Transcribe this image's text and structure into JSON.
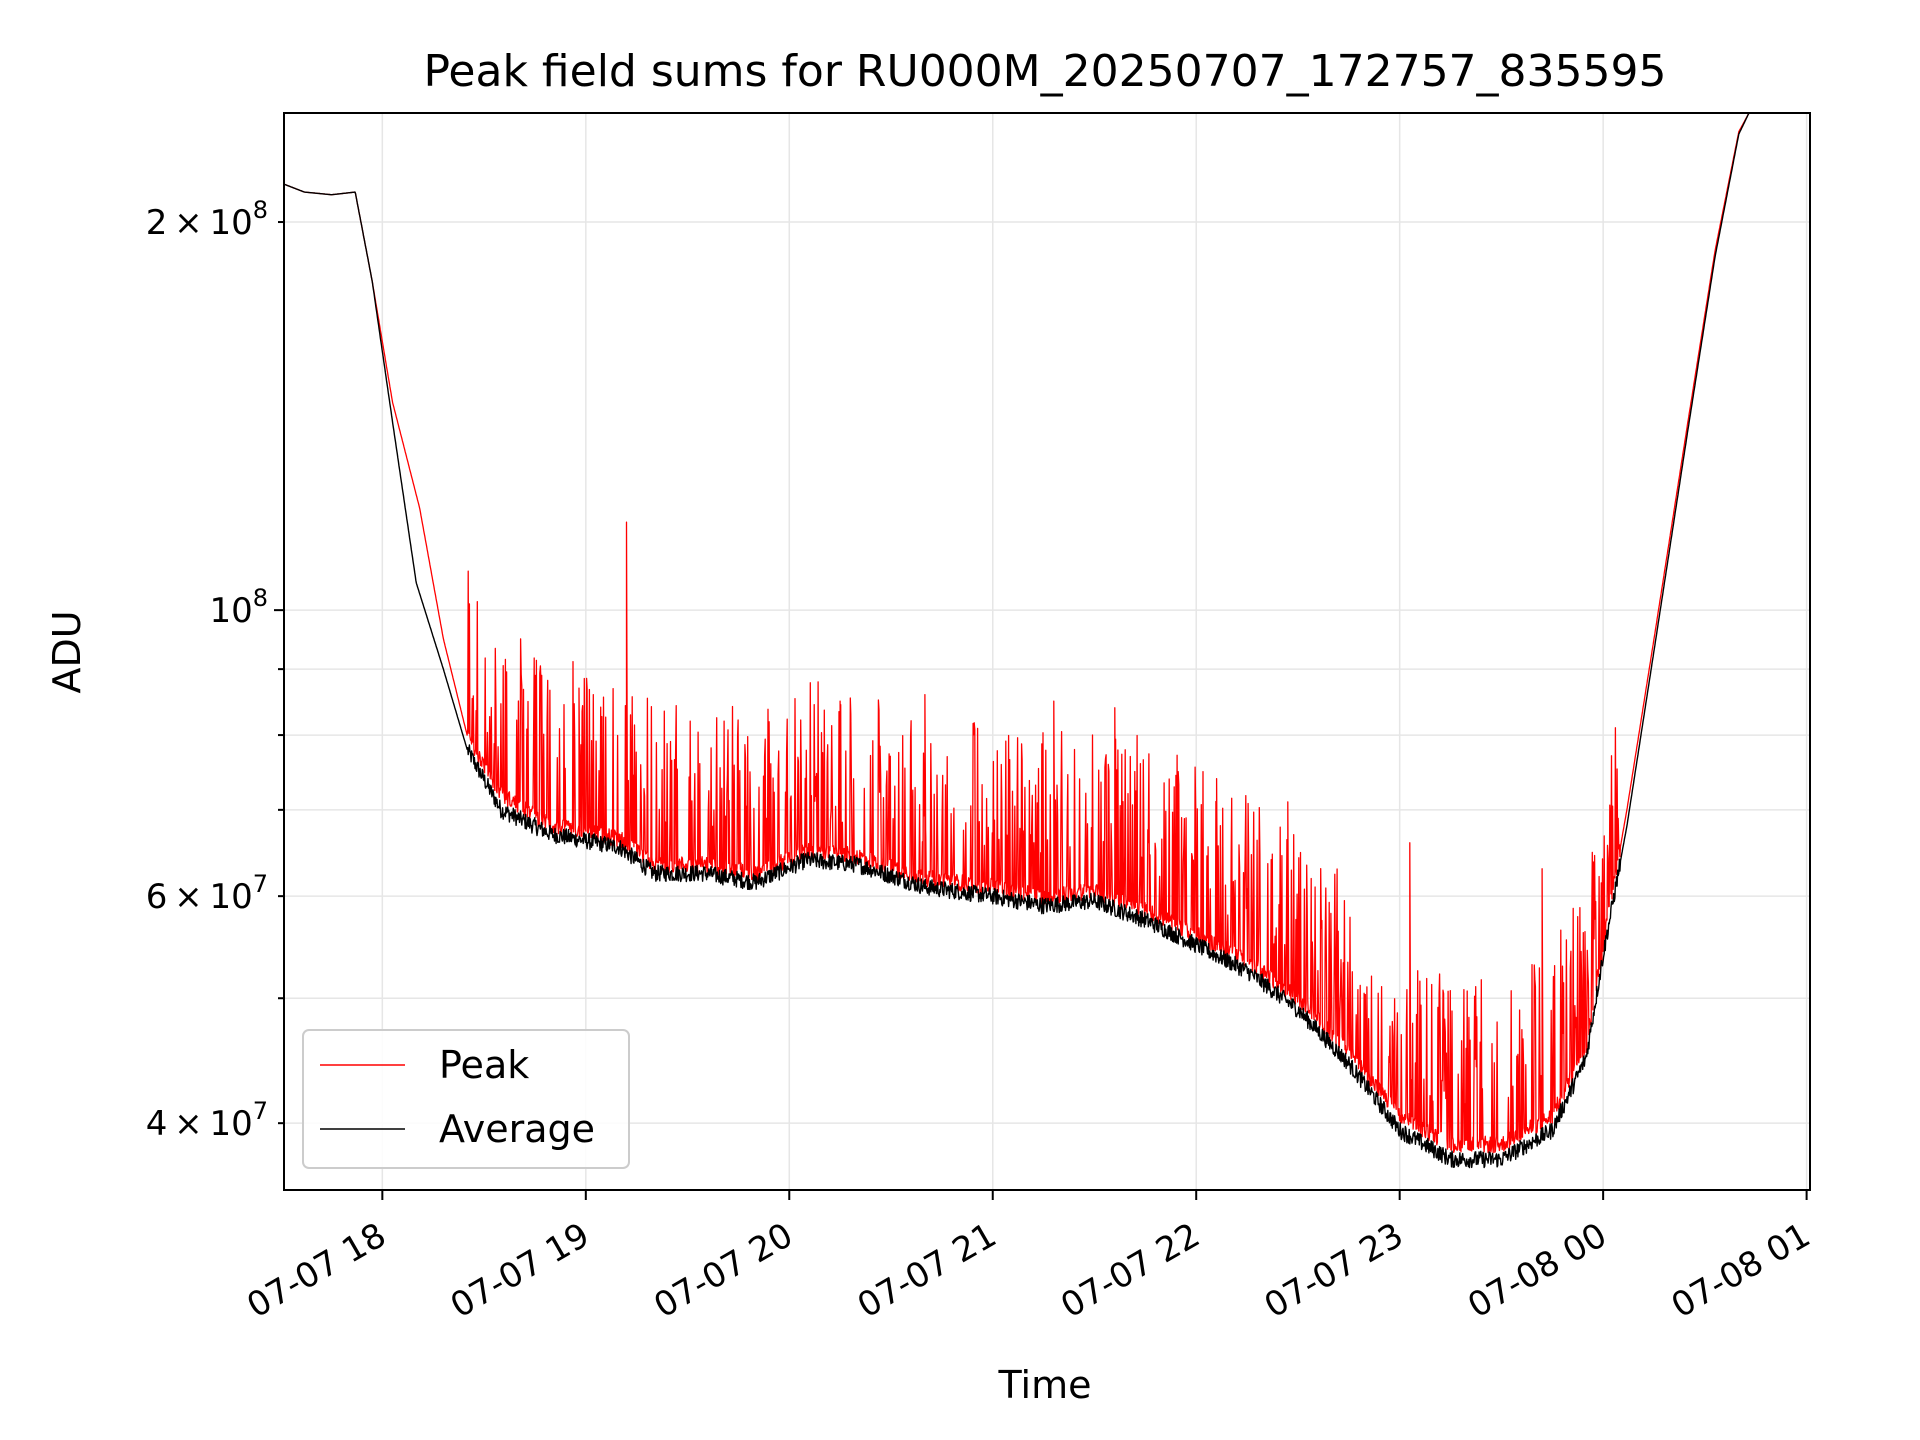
{
  "chart_data": {
    "type": "line",
    "title": "Peak field sums for RU000M_20250707_172757_835595",
    "xlabel": "Time",
    "ylabel": "ADU",
    "x_scale": "time",
    "y_scale": "log",
    "x_range": [
      "2025-07-07 17:31",
      "2025-07-08 01:01"
    ],
    "ylim": [
      35500000,
      243000000
    ],
    "x_ticks": [
      "07-07 18",
      "07-07 19",
      "07-07 20",
      "07-07 21",
      "07-07 22",
      "07-07 23",
      "07-08 00",
      "07-08 01"
    ],
    "x_tick_times": [
      "2025-07-07 18:00",
      "2025-07-07 19:00",
      "2025-07-07 20:00",
      "2025-07-07 21:00",
      "2025-07-07 22:00",
      "2025-07-07 23:00",
      "2025-07-08 00:00",
      "2025-07-08 01:00"
    ],
    "y_ticks_major": [
      {
        "value": 100000000,
        "mantissa": "",
        "exp": "8"
      }
    ],
    "y_ticks_minor": [
      {
        "value": 40000000,
        "mantissa": "4",
        "exp": "7"
      },
      {
        "value": 60000000,
        "mantissa": "6",
        "exp": "7"
      },
      {
        "value": 200000000,
        "mantissa": "2",
        "exp": "8"
      }
    ],
    "grid": true,
    "legend_position": "lower-left",
    "series": [
      {
        "name": "Peak",
        "color": "#ff0000",
        "points": [
          [
            "2025-07-07 17:31",
            214000000
          ],
          [
            "2025-07-07 17:37",
            211000000
          ],
          [
            "2025-07-07 17:45",
            210000000
          ],
          [
            "2025-07-07 17:52",
            211000000
          ],
          [
            "2025-07-07 17:57",
            180000000
          ],
          [
            "2025-07-07 18:03",
            145000000
          ],
          [
            "2025-07-07 18:11",
            120000000
          ],
          [
            "2025-07-07 18:18",
            95000000
          ],
          [
            "2025-07-07 18:25",
            80000000
          ],
          [
            "2025-07-07 18:35",
            72000000
          ],
          [
            "2025-07-07 18:50",
            68000000
          ],
          [
            "2025-07-07 19:10",
            66500000
          ],
          [
            "2025-07-07 19:20",
            63500000
          ],
          [
            "2025-07-07 19:35",
            63500000
          ],
          [
            "2025-07-07 19:50",
            62500000
          ],
          [
            "2025-07-07 20:05",
            65000000
          ],
          [
            "2025-07-07 20:20",
            64500000
          ],
          [
            "2025-07-07 20:40",
            62000000
          ],
          [
            "2025-07-07 21:00",
            61000000
          ],
          [
            "2025-07-07 21:15",
            60000000
          ],
          [
            "2025-07-07 21:30",
            60500000
          ],
          [
            "2025-07-07 21:45",
            58500000
          ],
          [
            "2025-07-07 22:00",
            56000000
          ],
          [
            "2025-07-07 22:15",
            53500000
          ],
          [
            "2025-07-07 22:30",
            50000000
          ],
          [
            "2025-07-07 22:45",
            45500000
          ],
          [
            "2025-07-07 23:00",
            40500000
          ],
          [
            "2025-07-07 23:15",
            38500000
          ],
          [
            "2025-07-07 23:30",
            38500000
          ],
          [
            "2025-07-07 23:45",
            40500000
          ],
          [
            "2025-07-07 23:55",
            46000000
          ],
          [
            "2025-07-08 00:00",
            55000000
          ],
          [
            "2025-07-08 00:07",
            70000000
          ],
          [
            "2025-07-08 00:15",
            95000000
          ],
          [
            "2025-07-08 00:25",
            140000000
          ],
          [
            "2025-07-08 00:33",
            190000000
          ],
          [
            "2025-07-08 00:40",
            235000000
          ],
          [
            "2025-07-08 00:43",
            243000000
          ]
        ]
      },
      {
        "name": "Average",
        "color": "#000000",
        "points": [
          [
            "2025-07-07 17:31",
            214000000
          ],
          [
            "2025-07-07 17:37",
            211000000
          ],
          [
            "2025-07-07 17:45",
            210000000
          ],
          [
            "2025-07-07 17:52",
            211000000
          ],
          [
            "2025-07-07 17:57",
            180000000
          ],
          [
            "2025-07-07 18:03",
            140000000
          ],
          [
            "2025-07-07 18:10",
            105000000
          ],
          [
            "2025-07-07 18:18",
            90000000
          ],
          [
            "2025-07-07 18:25",
            78000000
          ],
          [
            "2025-07-07 18:35",
            70000000
          ],
          [
            "2025-07-07 18:50",
            67000000
          ],
          [
            "2025-07-07 19:10",
            65500000
          ],
          [
            "2025-07-07 19:20",
            62500000
          ],
          [
            "2025-07-07 19:35",
            62500000
          ],
          [
            "2025-07-07 19:50",
            61500000
          ],
          [
            "2025-07-07 20:05",
            64000000
          ],
          [
            "2025-07-07 20:20",
            63500000
          ],
          [
            "2025-07-07 20:40",
            61000000
          ],
          [
            "2025-07-07 21:00",
            60000000
          ],
          [
            "2025-07-07 21:15",
            59000000
          ],
          [
            "2025-07-07 21:30",
            59500000
          ],
          [
            "2025-07-07 21:45",
            57500000
          ],
          [
            "2025-07-07 22:00",
            55000000
          ],
          [
            "2025-07-07 22:15",
            52500000
          ],
          [
            "2025-07-07 22:30",
            49000000
          ],
          [
            "2025-07-07 22:45",
            44500000
          ],
          [
            "2025-07-07 23:00",
            39500000
          ],
          [
            "2025-07-07 23:15",
            37500000
          ],
          [
            "2025-07-07 23:30",
            37500000
          ],
          [
            "2025-07-07 23:45",
            39500000
          ],
          [
            "2025-07-07 23:55",
            45000000
          ],
          [
            "2025-07-08 00:00",
            54000000
          ],
          [
            "2025-07-08 00:07",
            68000000
          ],
          [
            "2025-07-08 00:15",
            93000000
          ],
          [
            "2025-07-08 00:25",
            138000000
          ],
          [
            "2025-07-08 00:33",
            188000000
          ],
          [
            "2025-07-08 00:40",
            234000000
          ],
          [
            "2025-07-08 00:43",
            243000000
          ]
        ]
      }
    ],
    "peak_spikes": [
      {
        "time": "2025-07-07 19:12",
        "value": 117000000
      },
      {
        "time": "2025-07-07 18:47",
        "value": 89000000
      },
      {
        "time": "2025-07-07 18:58",
        "value": 87000000
      },
      {
        "time": "2025-07-07 20:40",
        "value": 86000000
      },
      {
        "time": "2025-07-07 20:15",
        "value": 85000000
      },
      {
        "time": "2025-07-07 21:18",
        "value": 85000000
      },
      {
        "time": "2025-07-07 21:36",
        "value": 84000000
      },
      {
        "time": "2025-07-07 22:06",
        "value": 74000000
      },
      {
        "time": "2025-07-07 22:27",
        "value": 71000000
      },
      {
        "time": "2025-07-07 23:03",
        "value": 66000000
      },
      {
        "time": "2025-07-07 23:42",
        "value": 63000000
      }
    ]
  }
}
